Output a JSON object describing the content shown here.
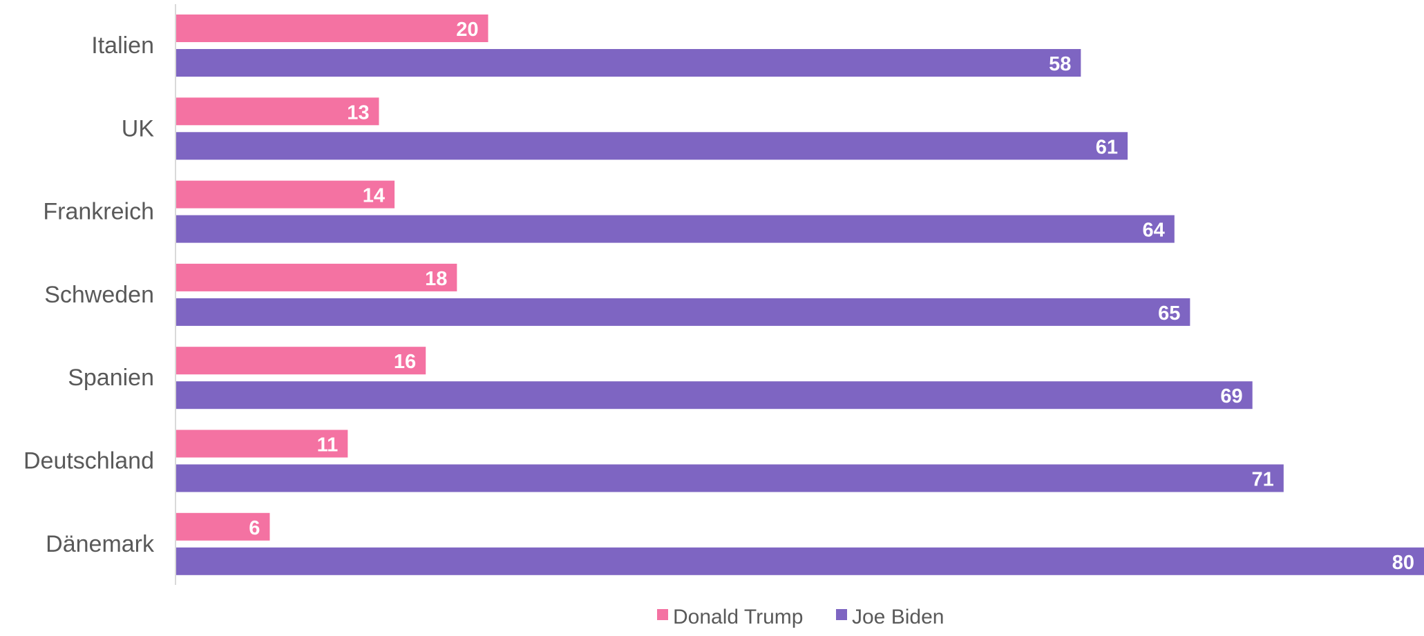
{
  "chart_data": {
    "type": "bar",
    "orientation": "horizontal",
    "categories": [
      "Italien",
      "UK",
      "Frankreich",
      "Schweden",
      "Spanien",
      "Deutschland",
      "Dänemark"
    ],
    "series": [
      {
        "name": "Donald Trump",
        "color": "#F472A2",
        "values": [
          20,
          13,
          14,
          18,
          16,
          11,
          6
        ]
      },
      {
        "name": "Joe Biden",
        "color": "#7E65C2",
        "values": [
          58,
          61,
          64,
          65,
          69,
          71,
          80
        ]
      }
    ],
    "xlim": [
      0,
      80
    ],
    "data_labels": true,
    "grid": false,
    "legend": "bottom-center"
  }
}
